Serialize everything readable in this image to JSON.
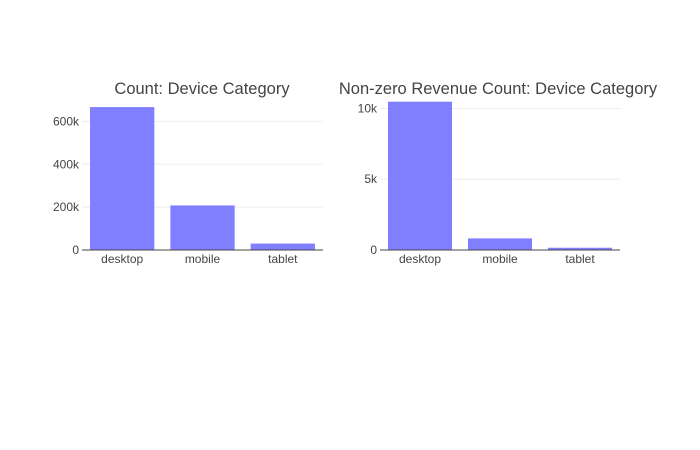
{
  "chart_data": [
    {
      "type": "bar",
      "title": "Count: Device Category",
      "categories": [
        "desktop",
        "mobile",
        "tablet"
      ],
      "values": [
        667000,
        208000,
        30000
      ],
      "ylim": [
        0,
        700000
      ],
      "yticks": [
        {
          "value": 0,
          "label": "0"
        },
        {
          "value": 200000,
          "label": "200k"
        },
        {
          "value": 400000,
          "label": "400k"
        },
        {
          "value": 600000,
          "label": "600k"
        }
      ],
      "color": "#7f7fff",
      "grid": true
    },
    {
      "type": "bar",
      "title": "Non-zero Revenue Count: Device Category",
      "categories": [
        "desktop",
        "mobile",
        "tablet"
      ],
      "values": [
        10480,
        820,
        160
      ],
      "ylim": [
        0,
        10600
      ],
      "yticks": [
        {
          "value": 0,
          "label": "0"
        },
        {
          "value": 5000,
          "label": "5k"
        },
        {
          "value": 10000,
          "label": "10k"
        }
      ],
      "color": "#7f7fff",
      "grid": true
    }
  ]
}
